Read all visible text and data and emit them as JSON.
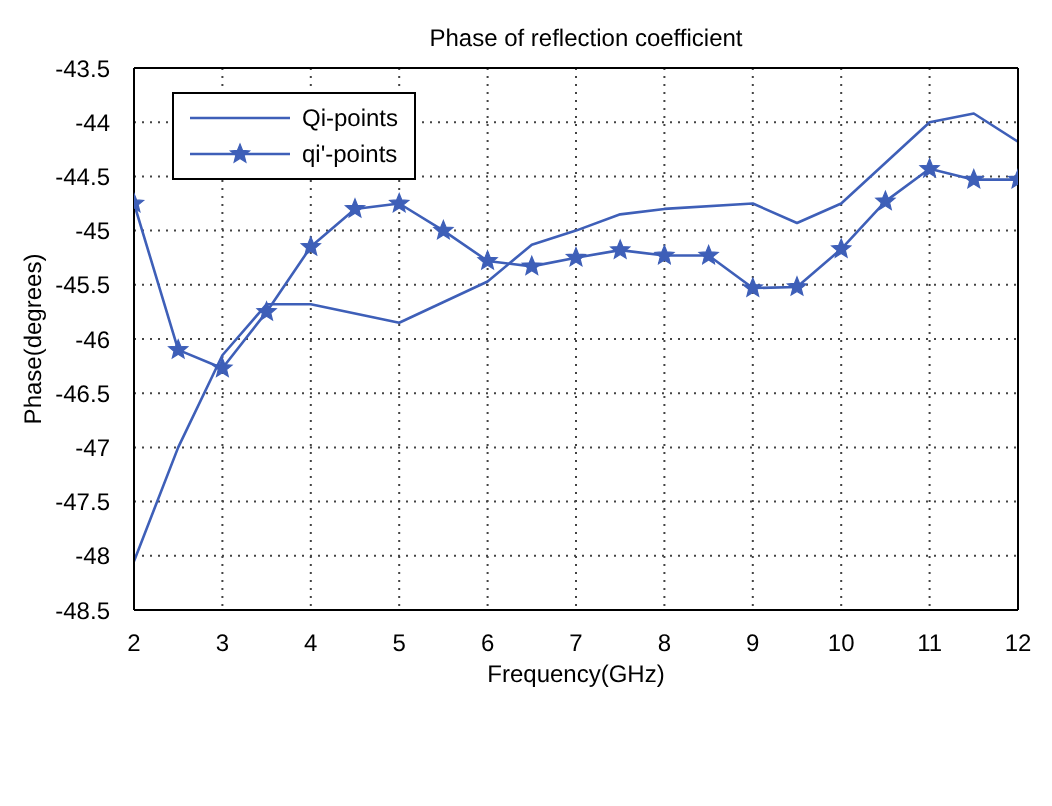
{
  "chart_data": {
    "type": "line",
    "title": "Phase of reflection coefficient",
    "xlabel": "Frequency(GHz)",
    "ylabel": "Phase(degrees)",
    "xlim": [
      2,
      12
    ],
    "xticks": [
      2,
      3,
      4,
      5,
      6,
      7,
      8,
      9,
      10,
      11,
      12
    ],
    "ylim": [
      -48.5,
      -43.5
    ],
    "yticks": [
      -48.5,
      -48,
      -47.5,
      -47,
      -46.5,
      -46,
      -45.5,
      -45,
      -44.5,
      -44,
      -43.5
    ],
    "grid": true,
    "legend": "top left",
    "line_style": "solid",
    "series": [
      {
        "name": "Qi-points",
        "color": "#3e5fb8",
        "marker": "none",
        "x": [
          2,
          2.5,
          3,
          3.5,
          4,
          5,
          6,
          6.5,
          7,
          7.5,
          8,
          9,
          9.5,
          10,
          11,
          11.5,
          12
        ],
        "values": [
          -48.05,
          -47.0,
          -46.15,
          -45.68,
          -45.68,
          -45.85,
          -45.47,
          -45.13,
          -45.0,
          -44.85,
          -44.8,
          -44.75,
          -44.93,
          -44.75,
          -44.0,
          -43.92,
          -44.18
        ]
      },
      {
        "name": "qi'-points",
        "color": "#3e5fb8",
        "marker": "star",
        "x": [
          2,
          2.5,
          3,
          3.5,
          4,
          4.5,
          5,
          5.5,
          6,
          6.5,
          7,
          7.5,
          8,
          8.5,
          9,
          9.5,
          10,
          10.5,
          11,
          11.5,
          12
        ],
        "values": [
          -44.75,
          -46.1,
          -46.27,
          -45.75,
          -45.15,
          -44.8,
          -44.75,
          -45.0,
          -45.28,
          -45.33,
          -45.25,
          -45.18,
          -45.23,
          -45.23,
          -45.53,
          -45.52,
          -45.17,
          -44.73,
          -44.43,
          -44.53,
          -44.53
        ]
      }
    ]
  }
}
